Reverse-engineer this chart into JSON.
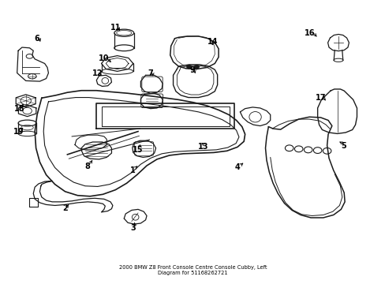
{
  "title": "2000 BMW Z8 Front Console Centre Console Cubby, Left Diagram for 51168262721",
  "bg": "#ffffff",
  "lc": "#1a1a1a",
  "figsize": [
    4.89,
    3.6
  ],
  "dpi": 100,
  "label_positions": {
    "1": [
      0.355,
      0.415,
      0.37,
      0.435
    ],
    "2": [
      0.175,
      0.265,
      0.19,
      0.285
    ],
    "3": [
      0.345,
      0.198,
      0.34,
      0.218
    ],
    "4": [
      0.62,
      0.415,
      0.625,
      0.435
    ],
    "5": [
      0.895,
      0.49,
      0.882,
      0.51
    ],
    "6": [
      0.092,
      0.87,
      0.105,
      0.848
    ],
    "7": [
      0.392,
      0.742,
      0.4,
      0.72
    ],
    "8": [
      0.222,
      0.415,
      0.235,
      0.438
    ],
    "9": [
      0.502,
      0.758,
      0.51,
      0.738
    ],
    "10": [
      0.268,
      0.798,
      0.28,
      0.778
    ],
    "11": [
      0.298,
      0.908,
      0.308,
      0.888
    ],
    "12": [
      0.252,
      0.742,
      0.265,
      0.728
    ],
    "13": [
      0.53,
      0.488,
      0.518,
      0.508
    ],
    "14": [
      0.555,
      0.858,
      0.545,
      0.838
    ],
    "15": [
      0.358,
      0.478,
      0.362,
      0.498
    ],
    "16": [
      0.812,
      0.888,
      0.832,
      0.87
    ],
    "17": [
      0.84,
      0.658,
      0.858,
      0.64
    ],
    "18": [
      0.048,
      0.618,
      0.06,
      0.638
    ],
    "19": [
      0.045,
      0.535,
      0.06,
      0.555
    ]
  }
}
